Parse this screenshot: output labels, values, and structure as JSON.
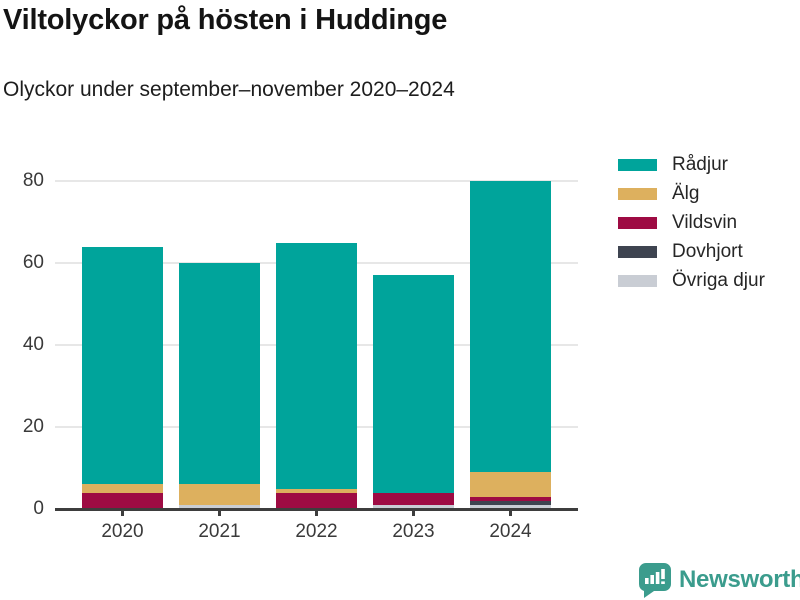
{
  "page": {
    "title": "Viltolyckor på hösten i Huddinge",
    "subtitle": "Olyckor under september–november 2020–2024"
  },
  "branding": {
    "logo_text": "Newsworthy",
    "logo_color": "#3b9c8d",
    "logo_icon": "bar-chart-speech-bubble"
  },
  "chart_data": {
    "type": "bar",
    "stacked": true,
    "title": "Viltolyckor på hösten i Huddinge",
    "subtitle": "Olyckor under september–november 2020–2024",
    "categories": [
      "2020",
      "2021",
      "2022",
      "2023",
      "2024"
    ],
    "series": [
      {
        "name": "Rådjur",
        "color": "#00a49b",
        "values": [
          58,
          54,
          60,
          53,
          71
        ]
      },
      {
        "name": "Älg",
        "color": "#ddb05e",
        "values": [
          2,
          5,
          1,
          0,
          6
        ]
      },
      {
        "name": "Vildsvin",
        "color": "#9e0b43",
        "values": [
          4,
          0,
          4,
          3,
          1
        ]
      },
      {
        "name": "Dovhjort",
        "color": "#3e4450",
        "values": [
          0,
          0,
          0,
          0,
          1
        ]
      },
      {
        "name": "Övriga djur",
        "color": "#c9cdd4",
        "values": [
          0,
          1,
          0,
          1,
          1
        ]
      }
    ],
    "totals": [
      64,
      60,
      65,
      57,
      80
    ],
    "ylim": [
      0,
      80
    ],
    "yticks": [
      0,
      20,
      40,
      60,
      80
    ],
    "grid": "horizontal",
    "legend_position": "right",
    "axis_color": "#3d3d3d",
    "gridline_color": "#e7e7e7"
  }
}
